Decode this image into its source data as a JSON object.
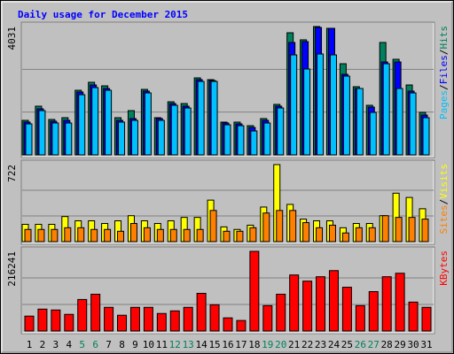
{
  "title": "Daily usage for December 2015",
  "chart_data": [
    {
      "type": "bar",
      "ylim": [
        0,
        4031
      ],
      "yticks": [
        4031
      ],
      "legend_separator": "/",
      "series": [
        {
          "name": "Hits",
          "color": "#00805c",
          "values": [
            1084,
            1529,
            1112,
            1168,
            2029,
            2280,
            2168,
            1168,
            1390,
            2057,
            1168,
            1668,
            1612,
            2419,
            2363,
            1029,
            1029,
            917,
            1140,
            1585,
            3836,
            3614,
            4031,
            3975,
            2863,
            2141,
            1557,
            3531,
            3002,
            2196,
            1334
          ]
        },
        {
          "name": "Files",
          "color": "#0000ff",
          "values": [
            1029,
            1446,
            1056,
            1084,
            1974,
            2196,
            2085,
            1084,
            1140,
            2002,
            1140,
            1612,
            1529,
            2363,
            2335,
            1001,
            973,
            862,
            1084,
            1529,
            3531,
            3558,
            4003,
            3975,
            2530,
            2085,
            1501,
            2919,
            2919,
            2002,
            1251
          ]
        },
        {
          "name": "Pages",
          "color": "#00c0ff",
          "values": [
            973,
            1390,
            1001,
            1001,
            1890,
            2113,
            2029,
            1029,
            1084,
            1946,
            1084,
            1557,
            1473,
            2307,
            2307,
            945,
            917,
            751,
            1001,
            1473,
            3141,
            2697,
            3169,
            3141,
            2474,
            2085,
            1334,
            2863,
            2085,
            1946,
            1168
          ]
        }
      ]
    },
    {
      "type": "bar",
      "ylim": [
        0,
        722
      ],
      "yticks": [
        722
      ],
      "legend_separator": "/",
      "series": [
        {
          "name": "Visits",
          "color": "#ffff00",
          "values": [
            162,
            162,
            162,
            235,
            195,
            195,
            170,
            195,
            243,
            195,
            170,
            195,
            227,
            227,
            389,
            138,
            114,
            154,
            324,
            722,
            349,
            211,
            195,
            195,
            130,
            170,
            170,
            243,
            454,
            414,
            308
          ]
        },
        {
          "name": "Sites",
          "color": "#ff8000",
          "values": [
            114,
            114,
            114,
            130,
            130,
            114,
            114,
            97,
            170,
            130,
            114,
            114,
            114,
            114,
            292,
            97,
            97,
            130,
            268,
            292,
            292,
            178,
            130,
            154,
            81,
            130,
            130,
            243,
            227,
            227,
            211
          ]
        }
      ]
    },
    {
      "type": "bar",
      "ylim": [
        0,
        216241
      ],
      "yticks": [
        216241
      ],
      "categories": [
        "1",
        "2",
        "3",
        "4",
        "5",
        "6",
        "7",
        "8",
        "9",
        "10",
        "11",
        "12",
        "13",
        "14",
        "15",
        "16",
        "17",
        "18",
        "19",
        "20",
        "21",
        "22",
        "23",
        "24",
        "25",
        "26",
        "27",
        "28",
        "29",
        "30",
        "31"
      ],
      "category_colors": [
        "#000000",
        "#000000",
        "#000000",
        "#000000",
        "#00805c",
        "#00805c",
        "#000000",
        "#000000",
        "#000000",
        "#000000",
        "#000000",
        "#00805c",
        "#00805c",
        "#000000",
        "#000000",
        "#000000",
        "#000000",
        "#000000",
        "#00805c",
        "#00805c",
        "#000000",
        "#000000",
        "#000000",
        "#000000",
        "#000000",
        "#00805c",
        "#00805c",
        "#000000",
        "#000000",
        "#000000",
        "#000000"
      ],
      "series": [
        {
          "name": "KBytes",
          "color": "#ff0000",
          "values": [
            40400,
            59400,
            57000,
            45100,
            85500,
            99800,
            64200,
            42800,
            64200,
            64200,
            47500,
            54600,
            64200,
            102200,
            71300,
            35600,
            28500,
            216241,
            68900,
            99800,
            152100,
            135400,
            147300,
            163900,
            118800,
            68900,
            106900,
            147300,
            156800,
            78400,
            64200
          ]
        }
      ]
    }
  ]
}
